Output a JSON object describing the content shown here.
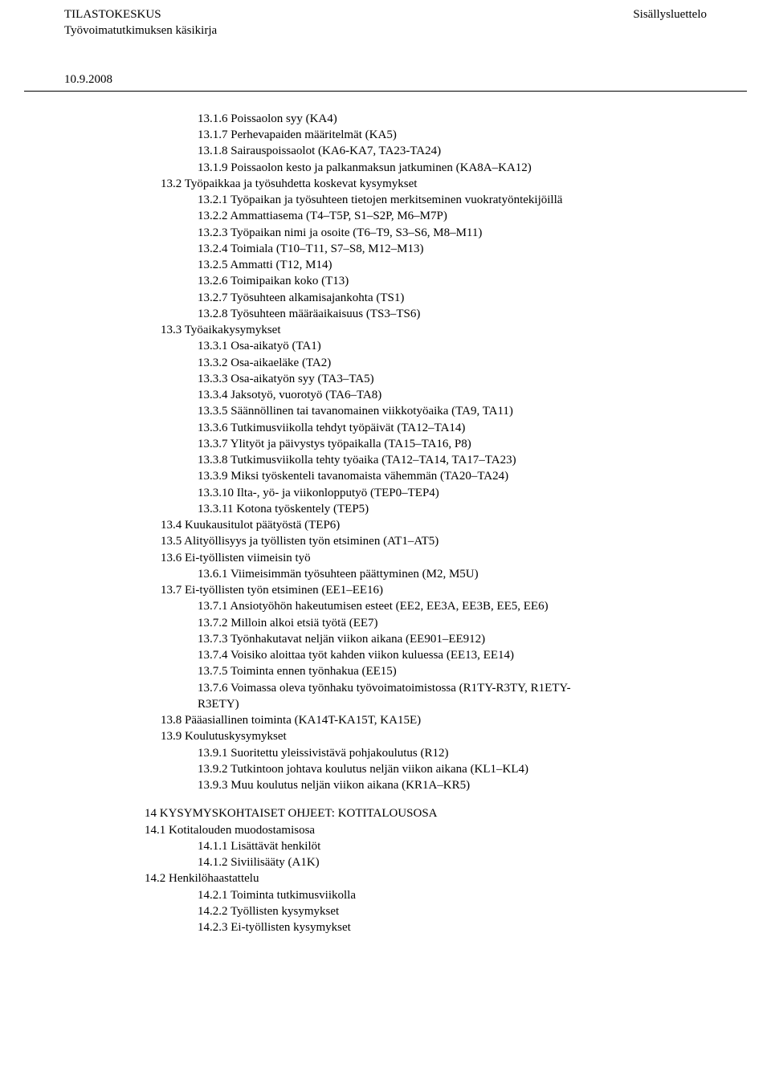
{
  "header": {
    "left_line1": "TILASTOKESKUS",
    "left_line2": "Työvoimatutkimuksen käsikirja",
    "right": "Sisällysluettelo"
  },
  "date": "10.9.2008",
  "toc": {
    "s13_1": [
      "13.1.6  Poissaolon syy (KA4)",
      "13.1.7  Perhevapaiden määritelmät (KA5)",
      "13.1.8  Sairauspoissaolot (KA6-KA7, TA23-TA24)",
      "13.1.9  Poissaolon kesto ja palkanmaksun jatkuminen (KA8A–KA12)"
    ],
    "s13_2_head": "13.2  Työpaikkaa ja työsuhdetta koskevat kysymykset",
    "s13_2": [
      "13.2.1 Työpaikan ja työsuhteen tietojen merkitseminen vuokratyöntekijöillä",
      "13.2.2  Ammattiasema (T4–T5P, S1–S2P, M6–M7P)",
      "13.2.3  Työpaikan nimi ja osoite (T6–T9, S3–S6, M8–M11)",
      "13.2.4  Toimiala (T10–T11, S7–S8, M12–M13)",
      "13.2.5  Ammatti (T12, M14)",
      "13.2.6  Toimipaikan koko (T13)",
      "13.2.7  Työsuhteen alkamisajankohta (TS1)",
      "13.2.8  Työsuhteen määräaikaisuus (TS3–TS6)"
    ],
    "s13_3_head": "13.3  Työaikakysymykset",
    "s13_3": [
      "13.3.1  Osa-aikatyö (TA1)",
      "13.3.2  Osa-aikaeläke (TA2)",
      "13.3.3  Osa-aikatyön syy (TA3–TA5)",
      "13.3.4  Jaksotyö, vuorotyö (TA6–TA8)",
      "13.3.5  Säännöllinen tai tavanomainen viikkotyöaika (TA9, TA11)",
      "13.3.6  Tutkimusviikolla tehdyt työpäivät (TA12–TA14)",
      "13.3.7  Ylityöt ja päivystys työpaikalla (TA15–TA16, P8)",
      "13.3.8  Tutkimusviikolla tehty työaika (TA12–TA14, TA17–TA23)",
      "13.3.9  Miksi työskenteli tavanomaista vähemmän (TA20–TA24)",
      "13.3.10  Ilta-, yö- ja viikonlopputyö (TEP0–TEP4)",
      "13.3.11   Kotona työskentely (TEP5)"
    ],
    "s13_tail": [
      "13.4  Kuukausitulot päätyöstä (TEP6)",
      "13.5  Alityöllisyys ja työllisten työn etsiminen (AT1–AT5)",
      "13.6  Ei-työllisten viimeisin työ"
    ],
    "s13_6": [
      "13.6.1  Viimeisimmän työsuhteen päättyminen (M2, M5U)"
    ],
    "s13_7_head": "13.7  Ei-työllisten työn etsiminen (EE1–EE16)",
    "s13_7": [
      "13.7.1  Ansiotyöhön hakeutumisen esteet (EE2, EE3A, EE3B, EE5, EE6)",
      "13.7.2  Milloin alkoi etsiä työtä (EE7)",
      "13.7.3  Työnhakutavat neljän viikon aikana (EE901–EE912)",
      "13.7.4  Voisiko aloittaa työt kahden viikon kuluessa (EE13, EE14)",
      "13.7.5  Toiminta ennen työnhakua (EE15)",
      "13.7.6  Voimassa oleva työnhaku työvoimatoimistossa (R1TY-R3TY, R1ETY-",
      "R3ETY)"
    ],
    "s13_8": "13.8  Pääasiallinen toiminta (KA14T-KA15T, KA15E)",
    "s13_9_head": "13.9  Koulutuskysymykset",
    "s13_9": [
      "13.9.1  Suoritettu yleissivistävä pohjakoulutus (R12)",
      "13.9.2  Tutkintoon johtava koulutus neljän viikon aikana (KL1–KL4)",
      "13.9.3  Muu koulutus neljän viikon aikana (KR1A–KR5)"
    ],
    "s14_head": "14   KYSYMYSKOHTAISET OHJEET: KOTITALOUSOSA",
    "s14_1_head": "14.1  Kotitalouden muodostamisosa",
    "s14_1": [
      "14.1.1  Lisättävät henkilöt",
      "14.1.2  Siviilisääty (A1K)"
    ],
    "s14_2_head": "14.2  Henkilöhaastattelu",
    "s14_2": [
      "14.2.1  Toiminta tutkimusviikolla",
      "14.2.2  Työllisten kysymykset",
      "14.2.3  Ei-työllisten kysymykset"
    ]
  }
}
